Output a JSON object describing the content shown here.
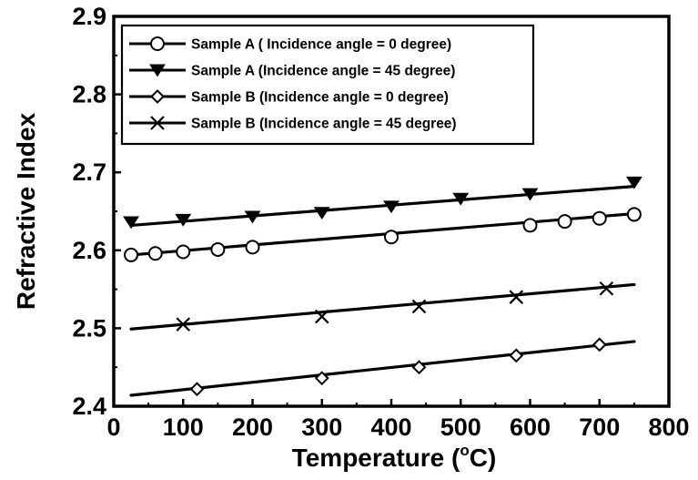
{
  "chart_data": {
    "type": "line",
    "title": "",
    "xlabel": "Temperature (°C)",
    "xlabel_parts": {
      "pre": "Temperature (",
      "sup": "o",
      "post": "C)"
    },
    "ylabel": "Refractive Index",
    "xlim": [
      0,
      800
    ],
    "ylim": [
      2.4,
      2.9
    ],
    "xticks": [
      "0",
      "100",
      "200",
      "300",
      "400",
      "500",
      "600",
      "700",
      "800"
    ],
    "yticks": [
      "2.4",
      "2.5",
      "2.6",
      "2.7",
      "2.8",
      "2.9"
    ],
    "grid": false,
    "legend_position": "top-left",
    "series": [
      {
        "name": "Sample A ( Incidence angle = 0 degree)",
        "marker": "open-circle",
        "line": [
          [
            25,
            2.594
          ],
          [
            750,
            2.647
          ]
        ],
        "x": [
          25,
          60,
          100,
          150,
          200,
          400,
          600,
          650,
          700,
          750
        ],
        "y": [
          2.594,
          2.596,
          2.598,
          2.601,
          2.604,
          2.617,
          2.632,
          2.637,
          2.641,
          2.646
        ]
      },
      {
        "name": "Sample A (Incidence angle = 45 degree)",
        "marker": "filled-triangle-down",
        "line": [
          [
            25,
            2.632
          ],
          [
            750,
            2.682
          ]
        ],
        "x": [
          25,
          100,
          200,
          300,
          400,
          500,
          600,
          750
        ],
        "y": [
          2.636,
          2.639,
          2.643,
          2.648,
          2.656,
          2.666,
          2.672,
          2.687
        ]
      },
      {
        "name": "Sample B (Incidence angle = 0 degree)",
        "marker": "open-diamond",
        "line": [
          [
            25,
            2.414
          ],
          [
            750,
            2.483
          ]
        ],
        "x": [
          120,
          300,
          440,
          580,
          700
        ],
        "y": [
          2.422,
          2.436,
          2.45,
          2.465,
          2.479
        ]
      },
      {
        "name": "Sample B (Incidence angle = 45 degree)",
        "marker": "x-cross",
        "line": [
          [
            25,
            2.499
          ],
          [
            750,
            2.556
          ]
        ],
        "x": [
          100,
          300,
          440,
          580,
          710
        ],
        "y": [
          2.505,
          2.515,
          2.528,
          2.54,
          2.551
        ]
      }
    ]
  }
}
